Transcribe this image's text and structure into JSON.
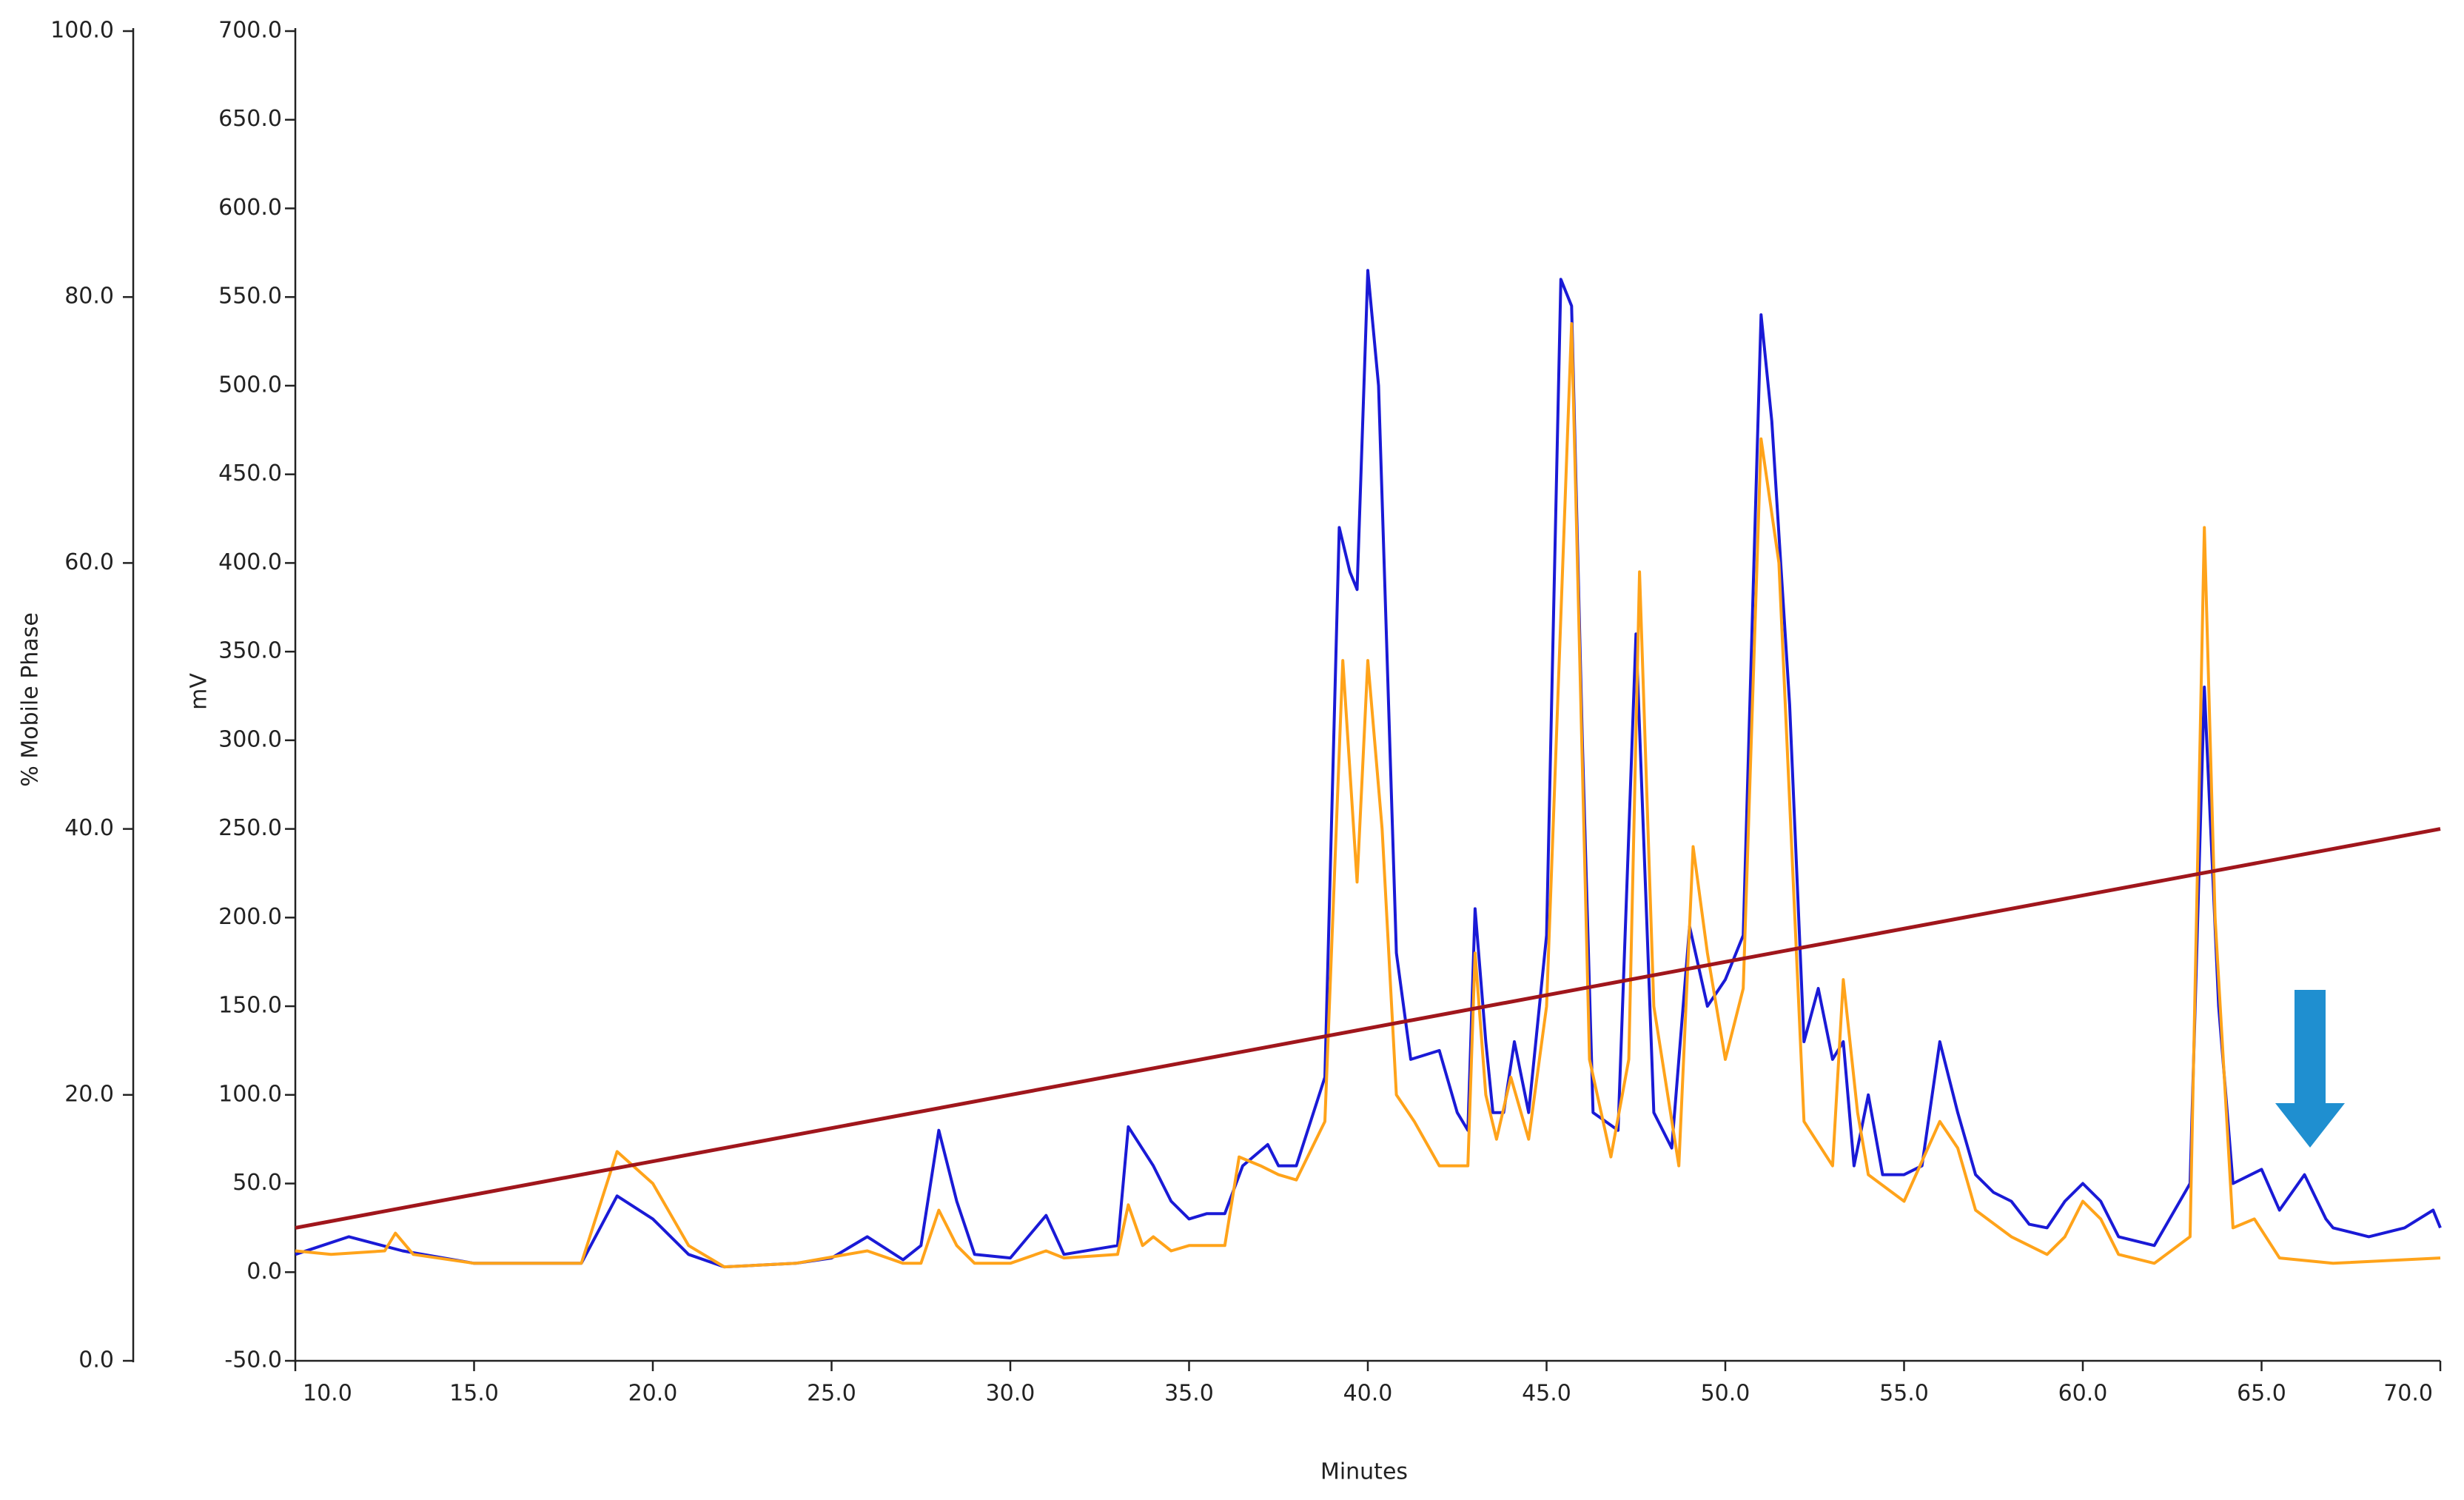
{
  "chart_data": {
    "type": "line",
    "xlabel": "Minutes",
    "ylabel": "mV",
    "y2label": "% Mobile Phase",
    "xlim": [
      10,
      70
    ],
    "ylim": [
      -50,
      700
    ],
    "y2lim": [
      0,
      100
    ],
    "xticks": [
      {
        "value": 10,
        "label": "10.0"
      },
      {
        "value": 15,
        "label": "15.0"
      },
      {
        "value": 20,
        "label": "20.0"
      },
      {
        "value": 25,
        "label": "25.0"
      },
      {
        "value": 30,
        "label": "30.0"
      },
      {
        "value": 35,
        "label": "35.0"
      },
      {
        "value": 40,
        "label": "40.0"
      },
      {
        "value": 45,
        "label": "45.0"
      },
      {
        "value": 50,
        "label": "50.0"
      },
      {
        "value": 55,
        "label": "55.0"
      },
      {
        "value": 60,
        "label": "60.0"
      },
      {
        "value": 65,
        "label": "65.0"
      },
      {
        "value": 70,
        "label": "70.0"
      }
    ],
    "yticks": [
      {
        "value": -50,
        "label": "-50.0"
      },
      {
        "value": 0,
        "label": "0.0"
      },
      {
        "value": 50,
        "label": "50.0"
      },
      {
        "value": 100,
        "label": "100.0"
      },
      {
        "value": 150,
        "label": "150.0"
      },
      {
        "value": 200,
        "label": "200.0"
      },
      {
        "value": 250,
        "label": "250.0"
      },
      {
        "value": 300,
        "label": "300.0"
      },
      {
        "value": 350,
        "label": "350.0"
      },
      {
        "value": 400,
        "label": "400.0"
      },
      {
        "value": 450,
        "label": "450.0"
      },
      {
        "value": 500,
        "label": "500.0"
      },
      {
        "value": 550,
        "label": "550.0"
      },
      {
        "value": 600,
        "label": "600.0"
      },
      {
        "value": 650,
        "label": "650.0"
      },
      {
        "value": 700,
        "label": "700.0"
      }
    ],
    "y2ticks": [
      {
        "value": 0,
        "label": "0.0"
      },
      {
        "value": 20,
        "label": "20.0"
      },
      {
        "value": 40,
        "label": "40.0"
      },
      {
        "value": 60,
        "label": "60.0"
      },
      {
        "value": 80,
        "label": "80.0"
      },
      {
        "value": 100,
        "label": "100.0"
      }
    ],
    "series": [
      {
        "color": "#1a1ad6",
        "x": [
          10,
          11.5,
          13,
          15,
          18,
          19,
          20,
          21,
          22,
          24,
          25,
          26,
          27,
          27.5,
          28,
          28.5,
          29,
          30,
          31,
          31.5,
          33,
          33.3,
          34,
          34.5,
          35,
          35.5,
          36,
          36.5,
          37.2,
          37.5,
          38,
          38.8,
          39.2,
          39.5,
          39.7,
          40,
          40.3,
          40.8,
          41.2,
          42,
          42.5,
          42.8,
          43,
          43.3,
          43.5,
          43.8,
          44.1,
          44.5,
          45,
          45.4,
          45.7,
          46,
          46.3,
          47,
          47.5,
          47.8,
          48,
          48.5,
          49,
          49.5,
          50,
          50.5,
          51,
          51.3,
          51.8,
          52.2,
          52.6,
          53,
          53.3,
          53.6,
          54,
          54.4,
          55,
          55.5,
          56,
          56.5,
          57,
          57.5,
          58,
          58.5,
          59,
          59.5,
          60,
          60.5,
          61,
          62,
          63,
          63.4,
          63.8,
          64.2,
          65,
          65.5,
          66.2,
          66.8,
          67,
          68,
          69,
          69.8,
          70
        ],
        "values": [
          10,
          20,
          12,
          5,
          5,
          43,
          30,
          10,
          3,
          5,
          8,
          20,
          7,
          15,
          80,
          40,
          10,
          8,
          32,
          10,
          15,
          82,
          60,
          40,
          30,
          33,
          33,
          60,
          72,
          60,
          60,
          110,
          420,
          395,
          385,
          565,
          500,
          180,
          120,
          125,
          90,
          80,
          205,
          130,
          90,
          90,
          130,
          90,
          190,
          560,
          545,
          300,
          90,
          80,
          360,
          200,
          90,
          70,
          195,
          150,
          165,
          190,
          540,
          480,
          320,
          130,
          160,
          120,
          130,
          60,
          100,
          55,
          55,
          60,
          130,
          90,
          55,
          45,
          40,
          27,
          25,
          40,
          50,
          40,
          20,
          15,
          50,
          330,
          150,
          50,
          58,
          35,
          55,
          30,
          25,
          20,
          25,
          35,
          25
        ]
      },
      {
        "color": "#ffa31a",
        "x": [
          10,
          11,
          12.5,
          12.8,
          13.3,
          15,
          18,
          19,
          20,
          21,
          22,
          24,
          26,
          27,
          27.5,
          28,
          28.5,
          29,
          30,
          31,
          31.5,
          33,
          33.3,
          33.7,
          34,
          34.5,
          35,
          36,
          36.4,
          37,
          37.5,
          38,
          38.8,
          39.3,
          39.7,
          40,
          40.4,
          40.8,
          41.3,
          42,
          42.8,
          43,
          43.3,
          43.6,
          44,
          44.5,
          45,
          45.7,
          46.2,
          46.8,
          47.3,
          47.6,
          48,
          48.7,
          49.1,
          49.5,
          50,
          50.5,
          51,
          51.5,
          52.2,
          53,
          53.3,
          53.7,
          54,
          55,
          56,
          56.5,
          57,
          58,
          59,
          59.5,
          60,
          60.5,
          61,
          62,
          63,
          63.4,
          63.7,
          64.2,
          64.8,
          65.5,
          67,
          70
        ],
        "values": [
          12,
          10,
          12,
          22,
          10,
          5,
          5,
          68,
          50,
          15,
          3,
          5,
          12,
          5,
          5,
          35,
          15,
          5,
          5,
          12,
          8,
          10,
          38,
          15,
          20,
          12,
          15,
          15,
          65,
          60,
          55,
          52,
          85,
          345,
          220,
          345,
          250,
          100,
          85,
          60,
          60,
          180,
          100,
          75,
          110,
          75,
          150,
          535,
          120,
          65,
          120,
          395,
          150,
          60,
          240,
          180,
          120,
          160,
          470,
          400,
          85,
          60,
          165,
          90,
          55,
          40,
          85,
          70,
          35,
          20,
          10,
          20,
          40,
          30,
          10,
          5,
          20,
          420,
          200,
          25,
          30,
          8,
          5,
          8
        ]
      },
      {
        "color": "#a0161c",
        "axis": "y2",
        "x": [
          10,
          70
        ],
        "values": [
          10,
          40
        ]
      }
    ]
  }
}
